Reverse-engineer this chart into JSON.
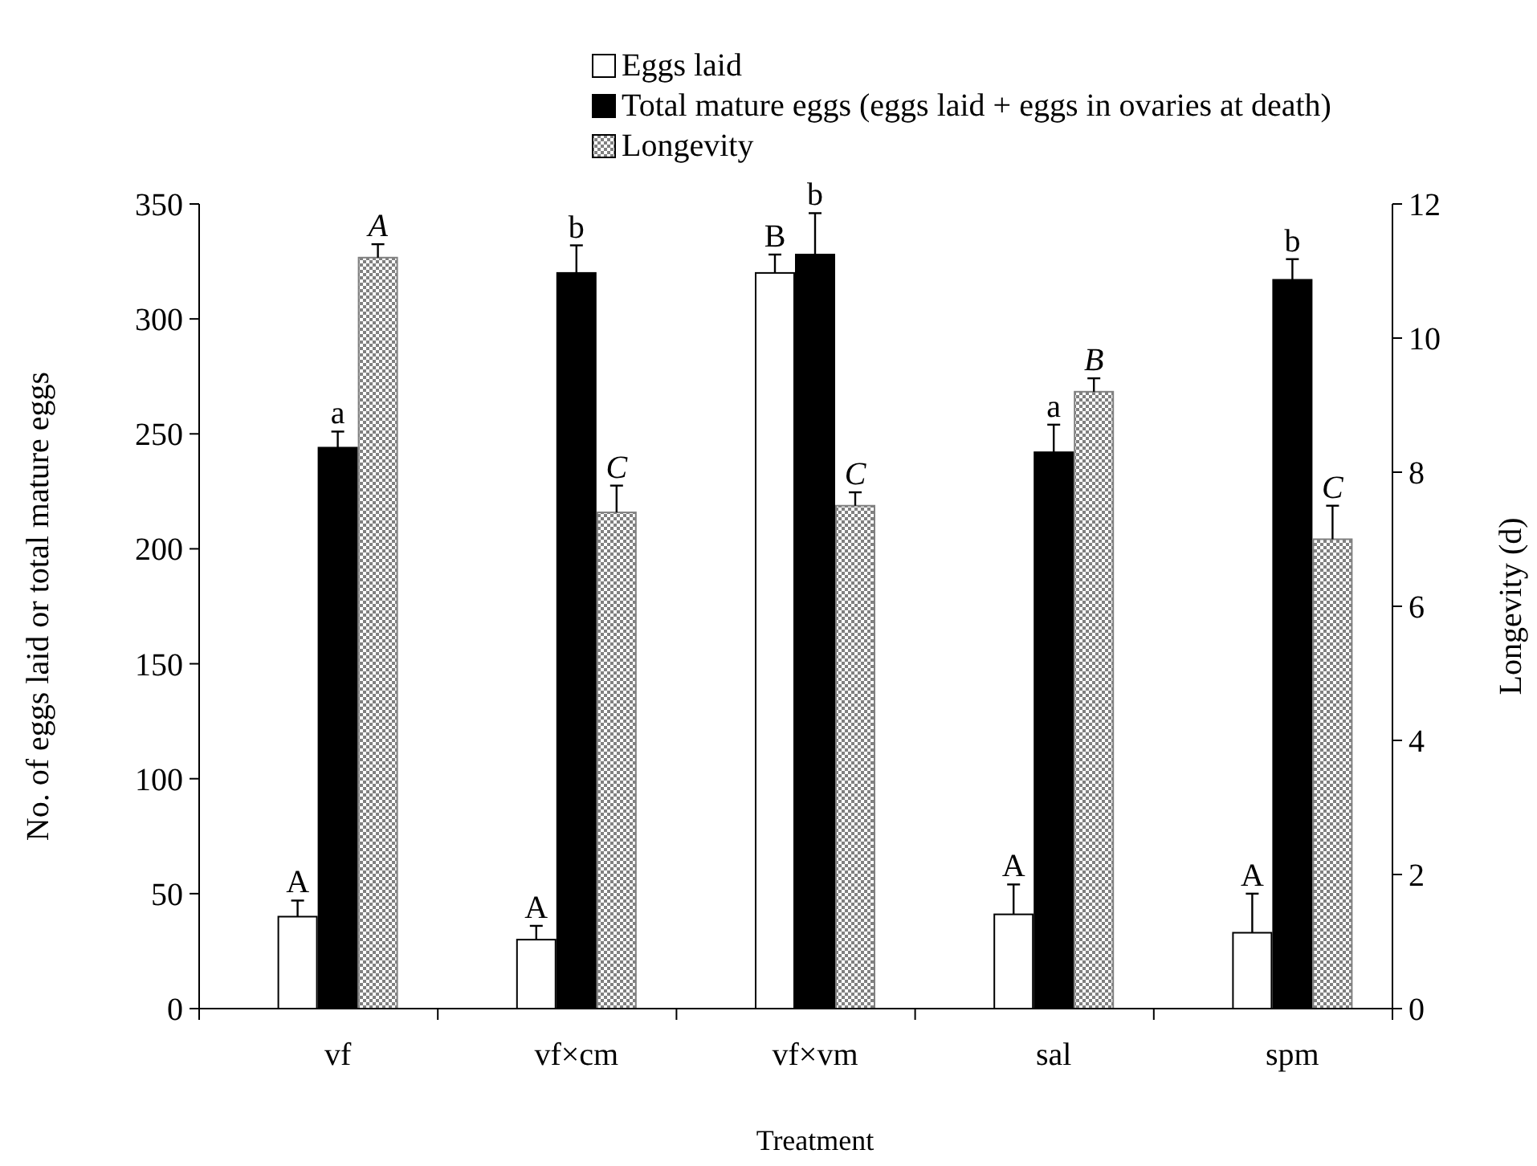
{
  "chart_data": {
    "type": "bar",
    "xlabel": "Treatment",
    "ylabel": "No. of eggs laid or total mature eggs",
    "y2label": "Longevity (d)",
    "categories": [
      "vf",
      "vf×cm",
      "vf×vm",
      "sal",
      "spm"
    ],
    "series": [
      {
        "name": "Eggs laid",
        "color": "#ffffff",
        "values": [
          40,
          30,
          320,
          41,
          33
        ],
        "errors": [
          7,
          6,
          8,
          13,
          17
        ],
        "value_labels": [
          "A",
          "A",
          "B",
          "A",
          "A"
        ]
      },
      {
        "name": "Total mature eggs (eggs laid + eggs in ovaries at death)",
        "color": "#000000",
        "values": [
          244,
          320,
          328,
          242,
          317
        ],
        "errors": [
          7,
          12,
          18,
          12,
          9
        ],
        "value_labels": [
          "a",
          "b",
          "b",
          "a",
          "b"
        ]
      },
      {
        "name": "Longevity",
        "color": "#808080",
        "axis": "y2",
        "values": [
          11.2,
          7.4,
          7.5,
          9.2,
          7.0
        ],
        "errors": [
          0.2,
          0.4,
          0.2,
          0.2,
          0.5
        ],
        "value_labels": [
          "A",
          "C",
          "C",
          "B",
          "C"
        ]
      }
    ],
    "ylim": [
      0,
      350
    ],
    "yticks": [
      0,
      50,
      100,
      150,
      200,
      250,
      300,
      350
    ],
    "y2lim": [
      0,
      12
    ],
    "y2ticks": [
      0,
      2,
      4,
      6,
      8,
      10,
      12
    ],
    "grid": false,
    "legend": "top"
  }
}
